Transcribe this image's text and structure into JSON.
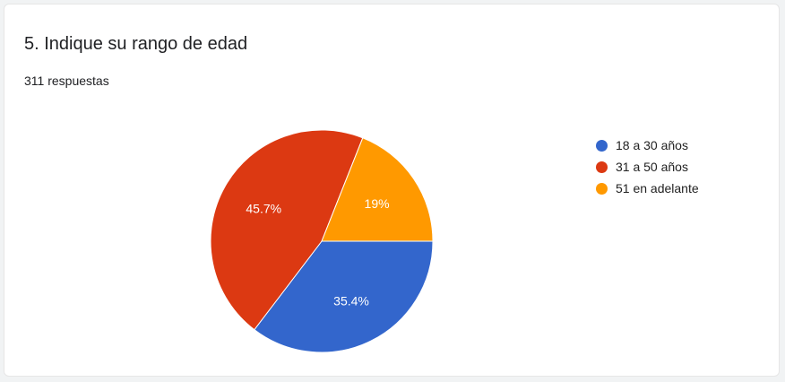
{
  "question": {
    "title": "5. Indique su rango de edad",
    "responses": "311 respuestas"
  },
  "chart_data": {
    "type": "pie",
    "title": "5. Indique su rango de edad",
    "subtitle": "311 respuestas",
    "legend_position": "right",
    "categories": [
      "18 a 30 años",
      "31 a 50 años",
      "51 en adelante"
    ],
    "values": [
      35.4,
      45.7,
      19
    ],
    "labels": [
      "35.4%",
      "45.7%",
      "19%"
    ],
    "colors": [
      "#3366cc",
      "#dc3912",
      "#ff9900"
    ]
  }
}
